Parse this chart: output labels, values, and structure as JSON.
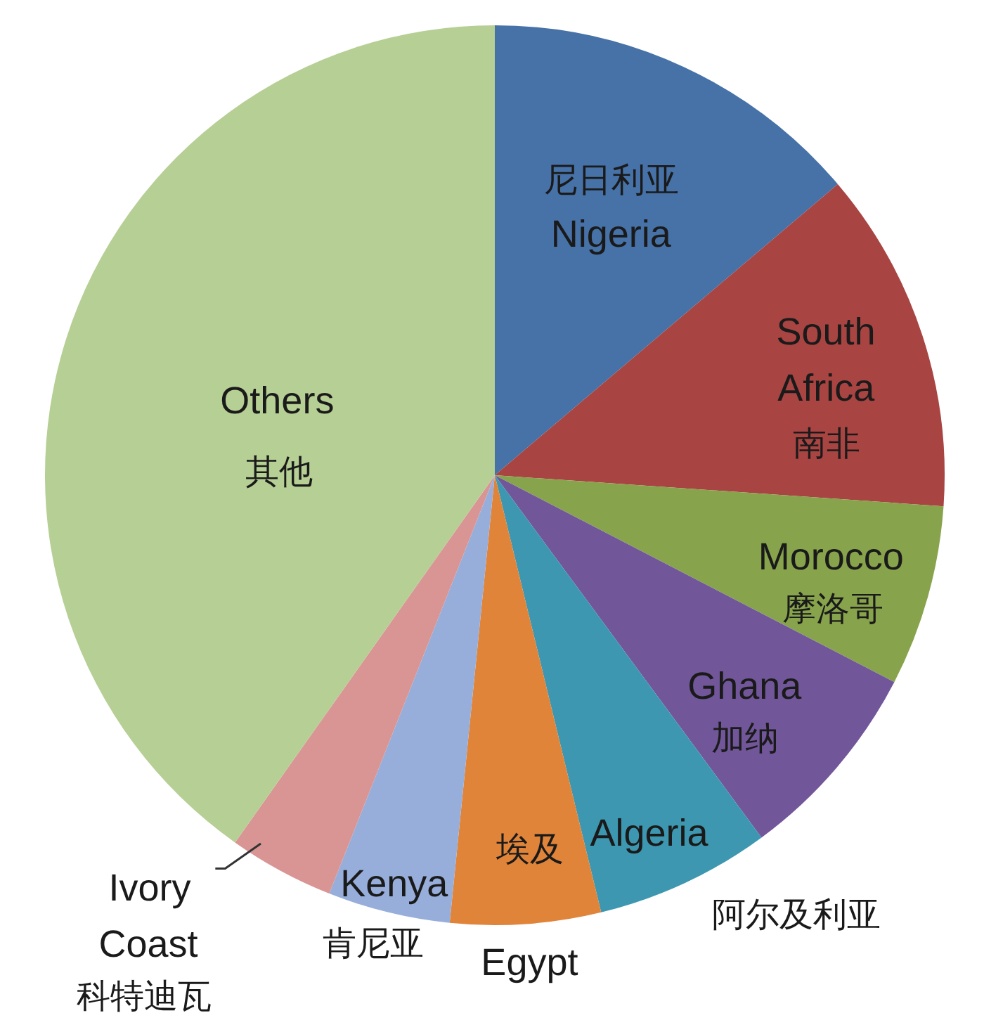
{
  "chart_data": {
    "type": "pie",
    "categories": [
      "尼日利亚\nNigeria",
      "South\nAfrica\n南非",
      "Morocco\n摩洛哥",
      "Ghana\n加纳",
      "Algeria\n阿尔及利亚",
      "埃及\nEgypt",
      "Kenya\n肯尼亚",
      "Ivory\nCoast\n科特迪瓦",
      "Others\n其他"
    ],
    "values": [
      13.8,
      12.3,
      6.5,
      7.3,
      6.3,
      5.4,
      4.4,
      3.8,
      40.2
    ],
    "colors": [
      "#4672a8",
      "#a84442",
      "#87a44c",
      "#71579a",
      "#3d97b0",
      "#e0843a",
      "#97aedb",
      "#d99594",
      "#b6cf94"
    ],
    "legend": false
  }
}
